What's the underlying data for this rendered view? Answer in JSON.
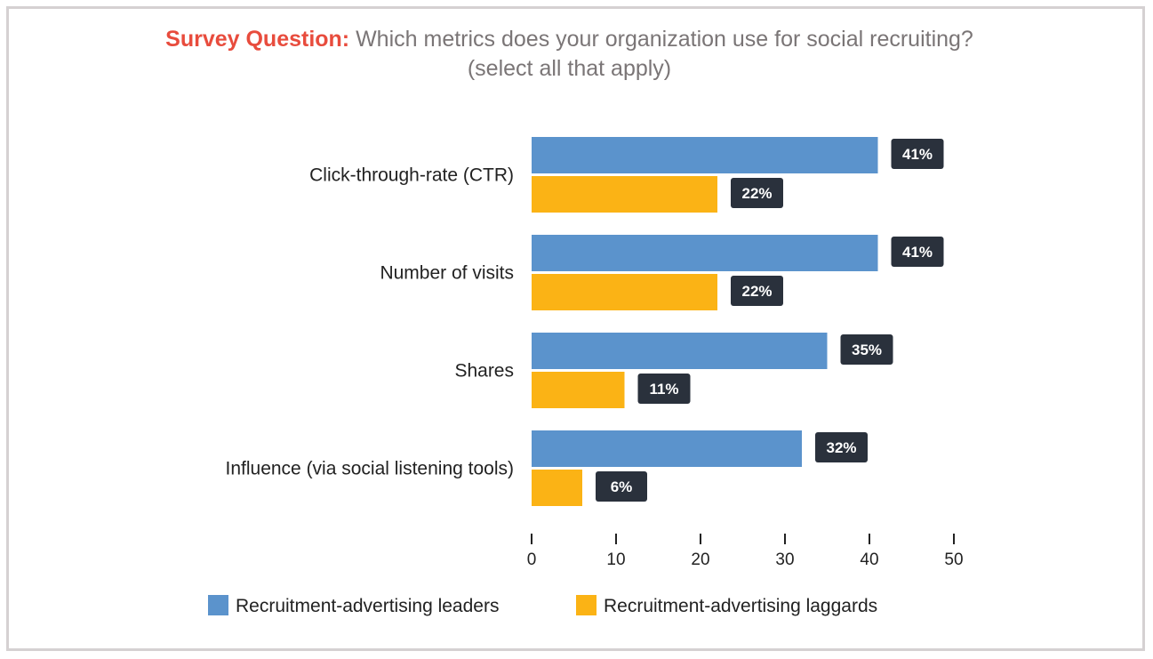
{
  "title": {
    "lead": "Survey Question:",
    "line1": " Which metrics does your organization use for social recruiting?",
    "line2": "(select all that apply)"
  },
  "colors": {
    "leaders": "#5b93cc",
    "laggards": "#fbb315",
    "label_bg": "#2a313c",
    "axis": "#222222"
  },
  "chart_data": {
    "type": "bar",
    "orientation": "horizontal",
    "categories": [
      "Click-through-rate (CTR)",
      "Number of visits",
      "Shares",
      "Influence (via social listening tools)"
    ],
    "series": [
      {
        "name": "Recruitment-advertising leaders",
        "values": [
          41,
          41,
          35,
          32
        ]
      },
      {
        "name": "Recruitment-advertising laggards",
        "values": [
          22,
          22,
          11,
          6
        ]
      }
    ],
    "value_suffix": "%",
    "xlim": [
      0,
      50
    ],
    "xticks": [
      0,
      10,
      20,
      30,
      40,
      50
    ],
    "xlabel": "",
    "ylabel": "",
    "legend_position": "bottom"
  }
}
